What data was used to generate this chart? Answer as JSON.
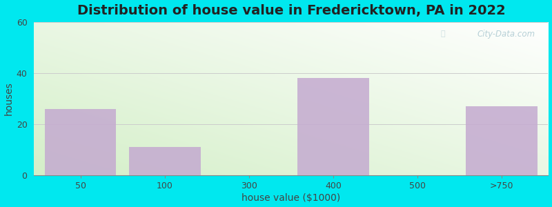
{
  "title": "Distribution of house value in Fredericktown, PA in 2022",
  "xlabel": "house value ($1000)",
  "ylabel": "houses",
  "categories": [
    "50",
    "100",
    "300",
    "400",
    "500",
    ">750"
  ],
  "values": [
    26,
    11,
    0,
    38,
    0,
    27
  ],
  "bar_color": "#c4aad0",
  "ylim": [
    0,
    60
  ],
  "yticks": [
    0,
    20,
    40,
    60
  ],
  "background_outer": "#00e8ef",
  "grad_top_left": "#d4efc8",
  "grad_bottom_right": "#ffffff",
  "grid_color": "#cccccc",
  "title_fontsize": 14,
  "axis_label_fontsize": 10,
  "tick_fontsize": 9,
  "watermark": "City-Data.com",
  "title_color": "#222222",
  "label_color": "#444444"
}
